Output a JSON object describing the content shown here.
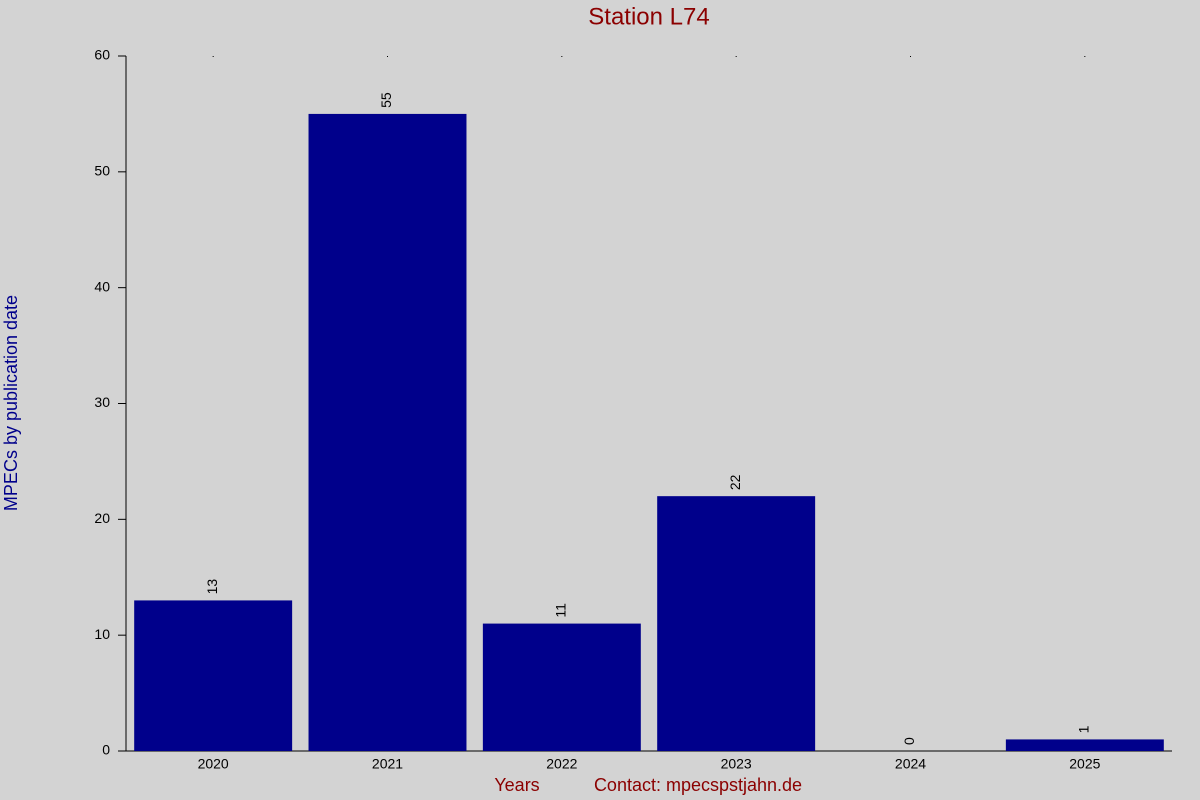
{
  "chart_data": {
    "type": "bar",
    "title": "Station L74",
    "ylabel": "MPECs by publication date",
    "xlabel": "Years",
    "annotation": "Contact: mpecspstjahn.de",
    "categories": [
      "2020",
      "2021",
      "2022",
      "2023",
      "2024",
      "2025"
    ],
    "values": [
      13,
      55,
      11,
      22,
      0,
      1
    ],
    "color": "#00008b",
    "ylim": [
      0,
      60
    ],
    "yticks": [
      0,
      10,
      20,
      30,
      40,
      50,
      60
    ],
    "grid": false,
    "value_labels_shown": true
  }
}
